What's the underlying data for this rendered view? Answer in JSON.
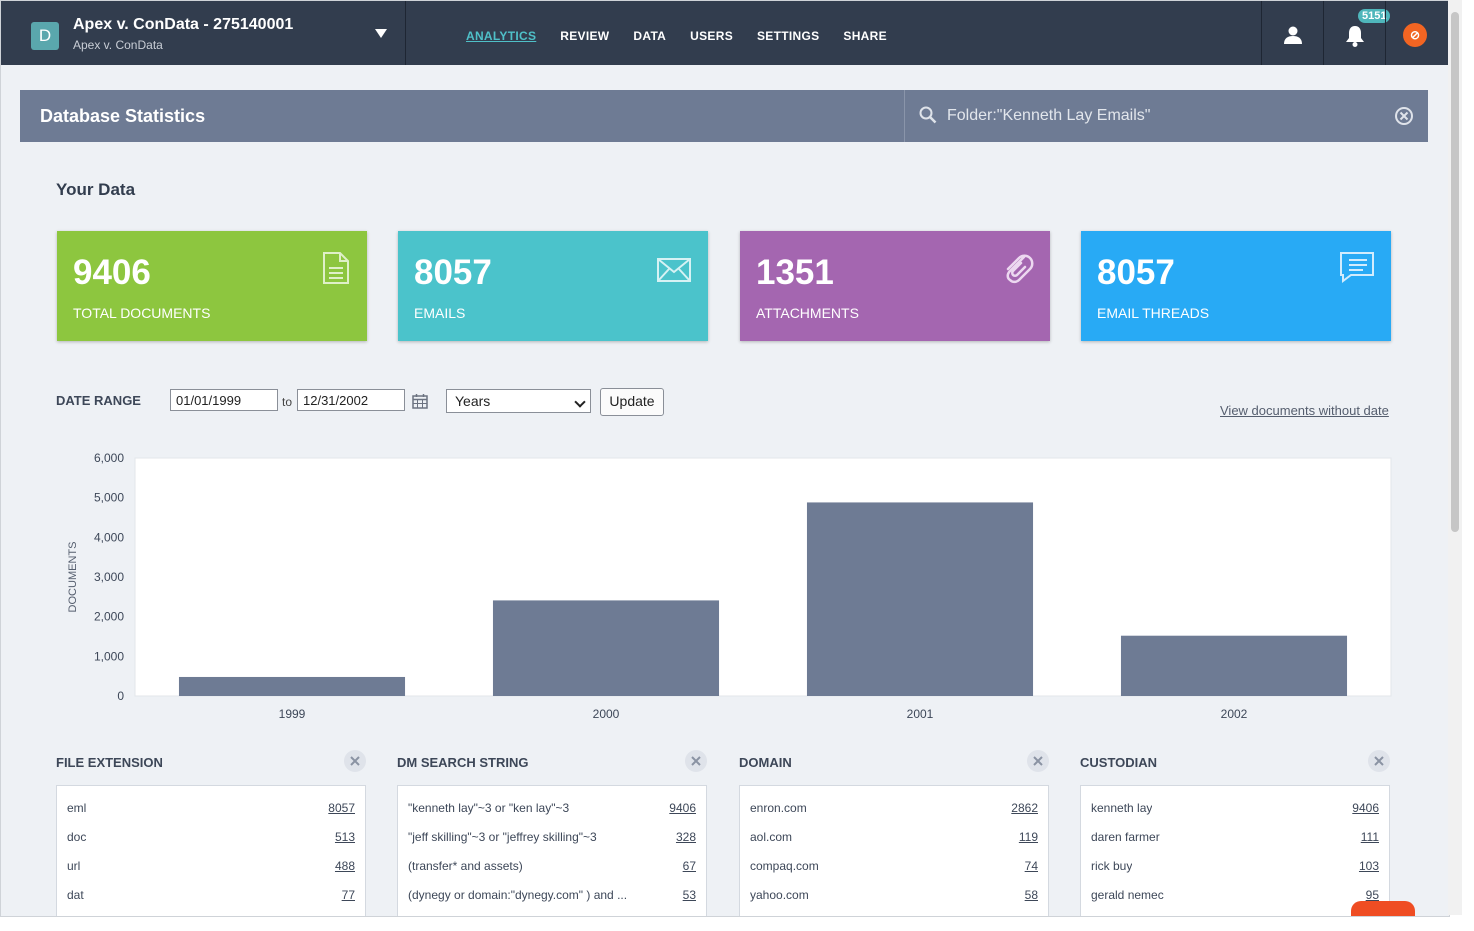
{
  "matter": {
    "badge": "D",
    "title": "Apex v. ConData - 275140001",
    "subtitle": "Apex v. ConData"
  },
  "nav": {
    "items": [
      {
        "label": "ANALYTICS",
        "active": true
      },
      {
        "label": "REVIEW"
      },
      {
        "label": "DATA"
      },
      {
        "label": "USERS"
      },
      {
        "label": "SETTINGS"
      },
      {
        "label": "SHARE"
      }
    ]
  },
  "header_icons": {
    "user": "user-icon",
    "bell": "bell-icon",
    "notifications_count": "5151",
    "brand": "brand-logo-icon"
  },
  "panel": {
    "title": "Database Statistics",
    "search_value": "Folder:\"Kenneth Lay Emails\""
  },
  "your_data": {
    "heading": "Your Data"
  },
  "cards": [
    {
      "number": "9406",
      "label": "TOTAL DOCUMENTS",
      "color": "#8dc63f",
      "icon": "document-icon"
    },
    {
      "number": "8057",
      "label": "EMAILS",
      "color": "#4bc3cb",
      "icon": "envelope-icon"
    },
    {
      "number": "1351",
      "label": "ATTACHMENTS",
      "color": "#a466b0",
      "icon": "paperclip-icon"
    },
    {
      "number": "8057",
      "label": "EMAIL THREADS",
      "color": "#28aaf5",
      "icon": "chat-icon"
    }
  ],
  "date_range": {
    "label": "DATE RANGE",
    "from": "01/01/1999",
    "to_label": "to",
    "to": "12/31/2002",
    "interval": "Years",
    "update_label": "Update",
    "no_date_link": "View documents without date"
  },
  "chart_data": {
    "type": "bar",
    "categories": [
      "1999",
      "2000",
      "2001",
      "2002"
    ],
    "values": [
      480,
      2410,
      4880,
      1520
    ],
    "ylabel": "DOCUMENTS",
    "ylim": [
      0,
      6000
    ],
    "yticks": [
      "0",
      "1,000",
      "2,000",
      "3,000",
      "4,000",
      "5,000",
      "6,000"
    ],
    "bar_color": "#6e7b94"
  },
  "facets": [
    {
      "title": "FILE EXTENSION",
      "rows": [
        {
          "name": "eml",
          "count": "8057"
        },
        {
          "name": "doc",
          "count": "513"
        },
        {
          "name": "url",
          "count": "488"
        },
        {
          "name": "dat",
          "count": "77"
        }
      ]
    },
    {
      "title": "DM SEARCH STRING",
      "rows": [
        {
          "name": "\"kenneth lay\"~3 or \"ken lay\"~3",
          "count": "9406"
        },
        {
          "name": "\"jeff skilling\"~3 or \"jeffrey skilling\"~3",
          "count": "328"
        },
        {
          "name": "(transfer* and assets)",
          "count": "67"
        },
        {
          "name": "(dynegy or domain:\"dynegy.com\" ) and ...",
          "count": "53"
        }
      ]
    },
    {
      "title": "DOMAIN",
      "rows": [
        {
          "name": "enron.com",
          "count": "2862"
        },
        {
          "name": "aol.com",
          "count": "119"
        },
        {
          "name": "compaq.com",
          "count": "74"
        },
        {
          "name": "yahoo.com",
          "count": "58"
        }
      ]
    },
    {
      "title": "CUSTODIAN",
      "rows": [
        {
          "name": "kenneth lay",
          "count": "9406"
        },
        {
          "name": "daren farmer",
          "count": "111"
        },
        {
          "name": "rick buy",
          "count": "103"
        },
        {
          "name": "gerald nemec",
          "count": "95"
        }
      ]
    }
  ]
}
